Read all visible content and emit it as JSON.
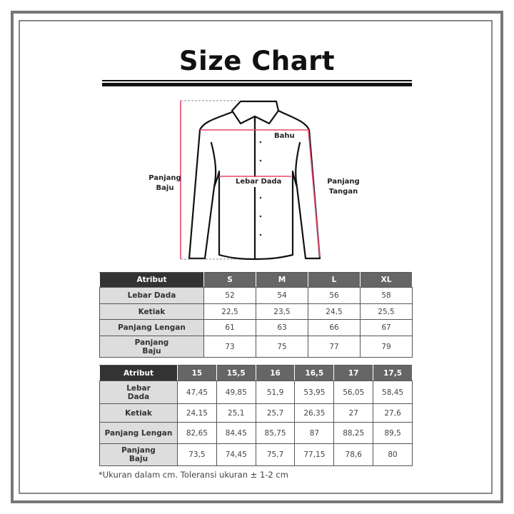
{
  "title": "Size Chart",
  "diagram": {
    "labels": {
      "bahu": "Bahu",
      "lebar_dada": "Lebar Dada",
      "panjang_baju_1": "Panjang",
      "panjang_baju_2": "Baju",
      "panjang_tangan_1": "Panjang",
      "panjang_tangan_2": "Tangan"
    },
    "colors": {
      "measure_line": "#e8466a",
      "outline": "#111111"
    }
  },
  "table_letter": {
    "headers": [
      "Atribut",
      "S",
      "M",
      "L",
      "XL"
    ],
    "rows": [
      {
        "label": "Lebar Dada",
        "values": [
          "52",
          "54",
          "56",
          "58"
        ]
      },
      {
        "label": "Ketiak",
        "values": [
          "22,5",
          "23,5",
          "24,5",
          "25,5"
        ]
      },
      {
        "label": "Panjang Lengan",
        "values": [
          "61",
          "63",
          "66",
          "67"
        ]
      },
      {
        "label": "Panjang Baju",
        "values": [
          "73",
          "75",
          "77",
          "79"
        ]
      }
    ]
  },
  "table_numeric": {
    "headers": [
      "Atribut",
      "15",
      "15,5",
      "16",
      "16,5",
      "17",
      "17,5"
    ],
    "rows": [
      {
        "label": "Lebar Dada",
        "values": [
          "47,45",
          "49,85",
          "51,9",
          "53,95",
          "56,05",
          "58,45"
        ]
      },
      {
        "label": "Ketiak",
        "values": [
          "24,15",
          "25,1",
          "25,7",
          "26,35",
          "27",
          "27,6"
        ]
      },
      {
        "label": "Panjang Lengan",
        "values": [
          "82,65",
          "84,45",
          "85,75",
          "87",
          "88,25",
          "89,5"
        ]
      },
      {
        "label": "Panjang Baju",
        "values": [
          "73,5",
          "74,45",
          "75,7",
          "77,15",
          "78,6",
          "80"
        ]
      }
    ]
  },
  "footnote": "*Ukuran dalam cm. Toleransi ukuran ± 1-2 cm"
}
